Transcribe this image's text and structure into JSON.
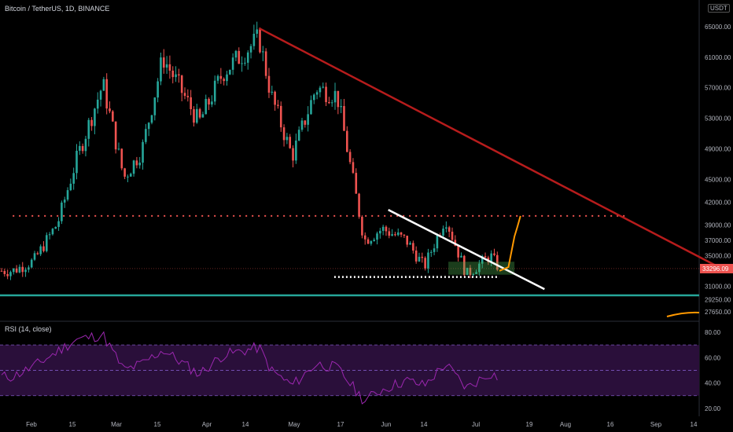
{
  "header": {
    "symbol_title": "Bitcoin / TetherUS, 1D, BINANCE",
    "currency": "USDT"
  },
  "rsi_panel": {
    "title": "RSI (14, close)"
  },
  "colors": {
    "up": "#26a69a",
    "down": "#ef5350",
    "background": "#000000",
    "trendline_red": "#b71c1c",
    "support_teal": "#26a69a",
    "trendline_white": "#ffffff",
    "projection_orange": "#ff9800",
    "rsi_line": "#9c27b0",
    "rsi_band": "#2a0f3a",
    "price_label_bg": "#ef5350"
  },
  "chart_data": [
    {
      "type": "line",
      "title": "Bitcoin / TetherUS, 1D, BINANCE",
      "x_type": "date",
      "x_tick_labels": [
        "Feb",
        "15",
        "Mar",
        "15",
        "Apr",
        "14",
        "May",
        "17",
        "Jun",
        "14",
        "Jul",
        "19",
        "Aug",
        "16",
        "Sep",
        "14"
      ],
      "y_tick_labels": [
        "65000.00",
        "61000.00",
        "57000.00",
        "53000.00",
        "49000.00",
        "45000.00",
        "42000.00",
        "39000.00",
        "37000.00",
        "35000.00",
        "31000.00",
        "29250.00",
        "27650.00"
      ],
      "y_ticks": [
        65000,
        61000,
        57000,
        53000,
        49000,
        45000,
        42000,
        39000,
        37000,
        35000,
        31000,
        29250,
        27650
      ],
      "ylim": [
        26500,
        68500
      ],
      "last_price_label": "33296.09",
      "last_price": 33296.09,
      "close_series": [
        {
          "x": "2021-01-22",
          "y": 33000
        },
        {
          "x": "2021-01-29",
          "y": 34300
        },
        {
          "x": "2021-02-06",
          "y": 39300
        },
        {
          "x": "2021-02-12",
          "y": 47300
        },
        {
          "x": "2021-02-21",
          "y": 57500
        },
        {
          "x": "2021-02-28",
          "y": 45200
        },
        {
          "x": "2021-03-06",
          "y": 48800
        },
        {
          "x": "2021-03-13",
          "y": 61000
        },
        {
          "x": "2021-03-25",
          "y": 52400
        },
        {
          "x": "2021-04-02",
          "y": 59000
        },
        {
          "x": "2021-04-14",
          "y": 63500
        },
        {
          "x": "2021-04-18",
          "y": 56000
        },
        {
          "x": "2021-04-25",
          "y": 48000
        },
        {
          "x": "2021-05-03",
          "y": 57000
        },
        {
          "x": "2021-05-10",
          "y": 56000
        },
        {
          "x": "2021-05-19",
          "y": 37000
        },
        {
          "x": "2021-05-25",
          "y": 38500
        },
        {
          "x": "2021-06-02",
          "y": 37000
        },
        {
          "x": "2021-06-08",
          "y": 33500
        },
        {
          "x": "2021-06-15",
          "y": 40000
        },
        {
          "x": "2021-06-22",
          "y": 32500
        },
        {
          "x": "2021-06-30",
          "y": 35000
        },
        {
          "x": "2021-07-03",
          "y": 33296
        }
      ],
      "annotations": {
        "red_trendline": {
          "from": {
            "x": "2021-04-14",
            "y": 64800
          },
          "to": {
            "x": "2021-09-14",
            "y": 33500
          }
        },
        "white_trendline": {
          "from": {
            "x": "2021-05-27",
            "y": 41000
          },
          "to": {
            "x": "2021-07-18",
            "y": 30600
          }
        },
        "support_line": {
          "y": 29800
        },
        "resistance_dotted": {
          "y": 40200,
          "from": "2021-01-22",
          "to": "2021-08-14"
        },
        "white_dotted": {
          "y": 32200,
          "from": "2021-05-09",
          "to": "2021-07-03"
        },
        "green_box": {
          "x_from": "2021-06-16",
          "x_to": "2021-07-08",
          "y_from": 32500,
          "y_to": 34200
        },
        "orange_projection": [
          {
            "x": "2021-07-03",
            "y": 33000
          },
          {
            "x": "2021-07-06",
            "y": 33500
          },
          {
            "x": "2021-07-07",
            "y": 35500
          },
          {
            "x": "2021-07-08",
            "y": 37500
          },
          {
            "x": "2021-07-09",
            "y": 38800
          },
          {
            "x": "2021-07-10",
            "y": 40200
          }
        ]
      }
    },
    {
      "type": "line",
      "title": "RSI (14, close)",
      "y_tick_labels": [
        "80.00",
        "60.00",
        "40.00",
        "20.00"
      ],
      "y_ticks": [
        80,
        60,
        40,
        20
      ],
      "ylim": [
        15,
        88
      ],
      "band": [
        30,
        70
      ],
      "midline": 50,
      "series": [
        {
          "x": "2021-01-22",
          "y": 45
        },
        {
          "x": "2021-01-29",
          "y": 53
        },
        {
          "x": "2021-02-06",
          "y": 65
        },
        {
          "x": "2021-02-12",
          "y": 74
        },
        {
          "x": "2021-02-21",
          "y": 78
        },
        {
          "x": "2021-02-28",
          "y": 50
        },
        {
          "x": "2021-03-06",
          "y": 55
        },
        {
          "x": "2021-03-13",
          "y": 66
        },
        {
          "x": "2021-03-25",
          "y": 47
        },
        {
          "x": "2021-04-02",
          "y": 62
        },
        {
          "x": "2021-04-14",
          "y": 68
        },
        {
          "x": "2021-04-18",
          "y": 50
        },
        {
          "x": "2021-04-25",
          "y": 38
        },
        {
          "x": "2021-05-03",
          "y": 55
        },
        {
          "x": "2021-05-10",
          "y": 52
        },
        {
          "x": "2021-05-19",
          "y": 26
        },
        {
          "x": "2021-05-25",
          "y": 35
        },
        {
          "x": "2021-06-02",
          "y": 42
        },
        {
          "x": "2021-06-08",
          "y": 38
        },
        {
          "x": "2021-06-15",
          "y": 55
        },
        {
          "x": "2021-06-22",
          "y": 36
        },
        {
          "x": "2021-06-30",
          "y": 48
        },
        {
          "x": "2021-07-03",
          "y": 44
        }
      ]
    }
  ]
}
